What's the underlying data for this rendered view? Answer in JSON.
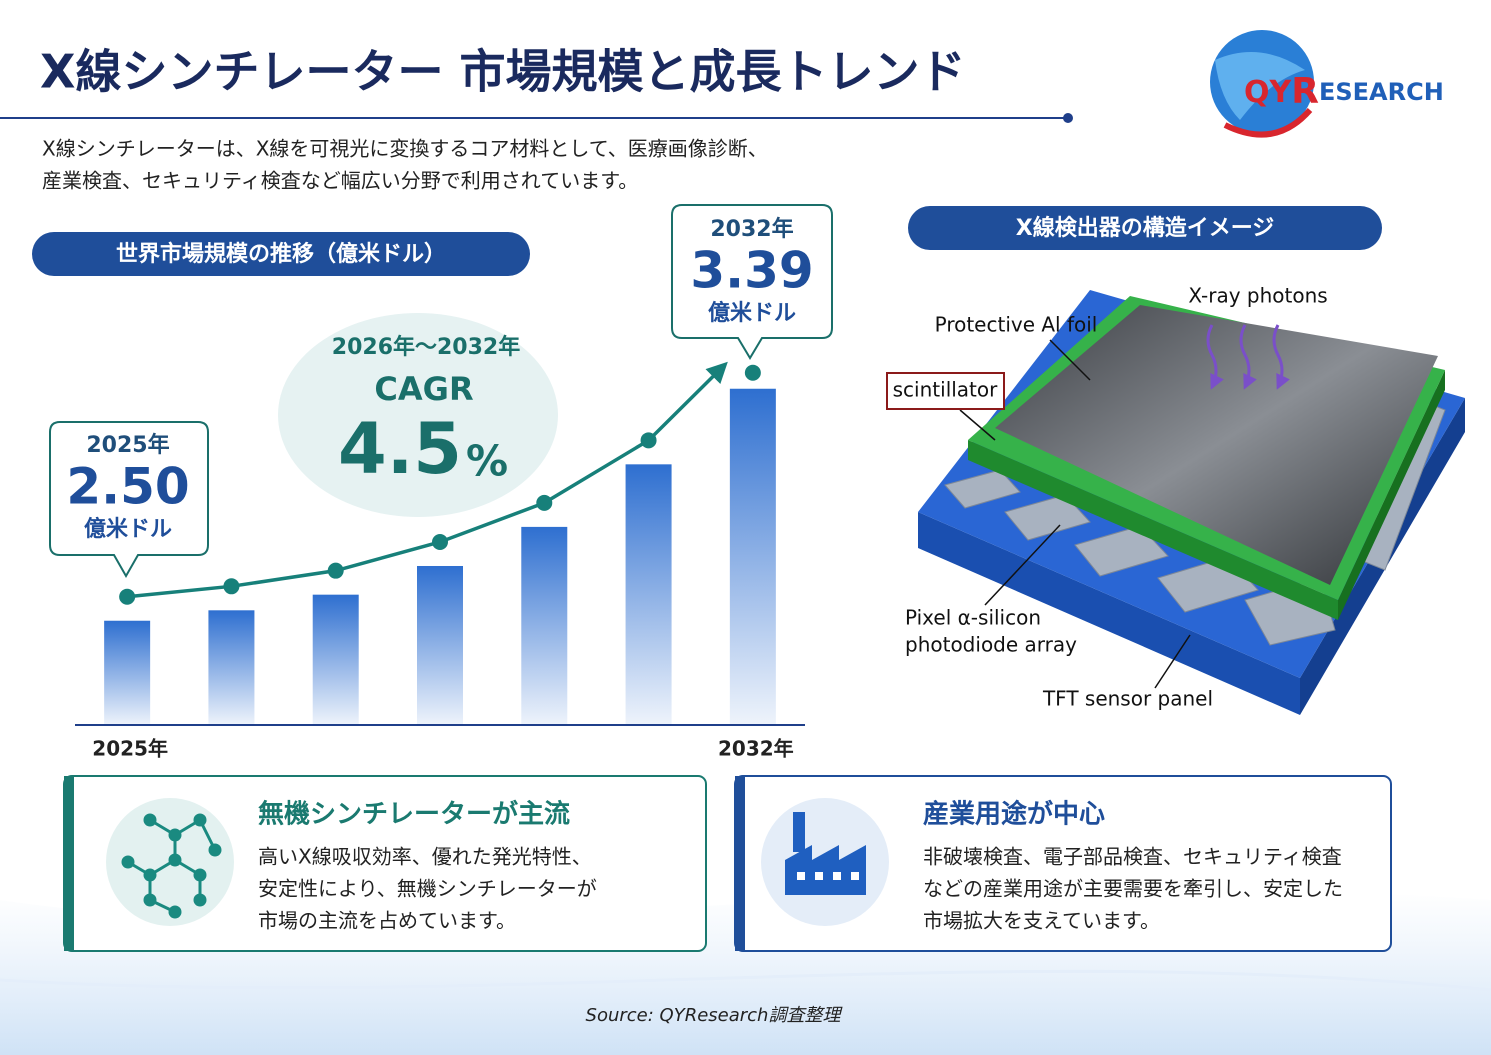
{
  "header": {
    "title": "X線シンチレーター 市場規模と成長トレンド",
    "description": [
      "X線シンチレーターは、X線を可視光に変換するコア材料として、医療画像診断、",
      "産業検査、セキュリティ検査など幅広い分野で利用されています。"
    ],
    "logo": [
      "QY",
      "R",
      "ESEARCH"
    ]
  },
  "chart_data": {
    "type": "bar",
    "title": "世界市場規模の推移（億米ドル）",
    "categories": [
      "2025年",
      null,
      null,
      null,
      null,
      null,
      "2032年"
    ],
    "values": [
      2.5,
      2.54,
      2.6,
      2.71,
      2.86,
      3.1,
      3.39
    ],
    "value_labels": [
      "2.50",
      null,
      null,
      null,
      null,
      null,
      "3.39"
    ],
    "unit": "億米ドル",
    "ylim": [
      2.1,
      3.6
    ],
    "color": "#2e6fd0",
    "line_color": "#17807a"
  },
  "cagr": {
    "period": "2026年～2032年",
    "label": "CAGR",
    "value": "4.5",
    "unit": "%"
  },
  "diagram": {
    "title": "X線検出器の構造イメージ",
    "labels": {
      "photons": "X-ray photons",
      "foil": "Protective Al foil",
      "scintillator": "scintillator",
      "pixel": [
        "Pixel α-silicon",
        "photodiode array"
      ],
      "tft": "TFT sensor panel"
    }
  },
  "cards": [
    {
      "title": "無機シンチレーターが主流",
      "lines": [
        "高いX線吸収効率、優れた発光特性、",
        "安定性により、無機シンチレーターが",
        "市場の主流を占めています。"
      ]
    },
    {
      "title": "産業用途が中心",
      "lines": [
        "非破壊検査、電子部品検査、セキュリティ検査",
        "などの産業用途が主要需要を牽引し、安定した",
        "市場拡大を支えています。"
      ]
    }
  ],
  "source": "Source: QYResearch調査整理"
}
